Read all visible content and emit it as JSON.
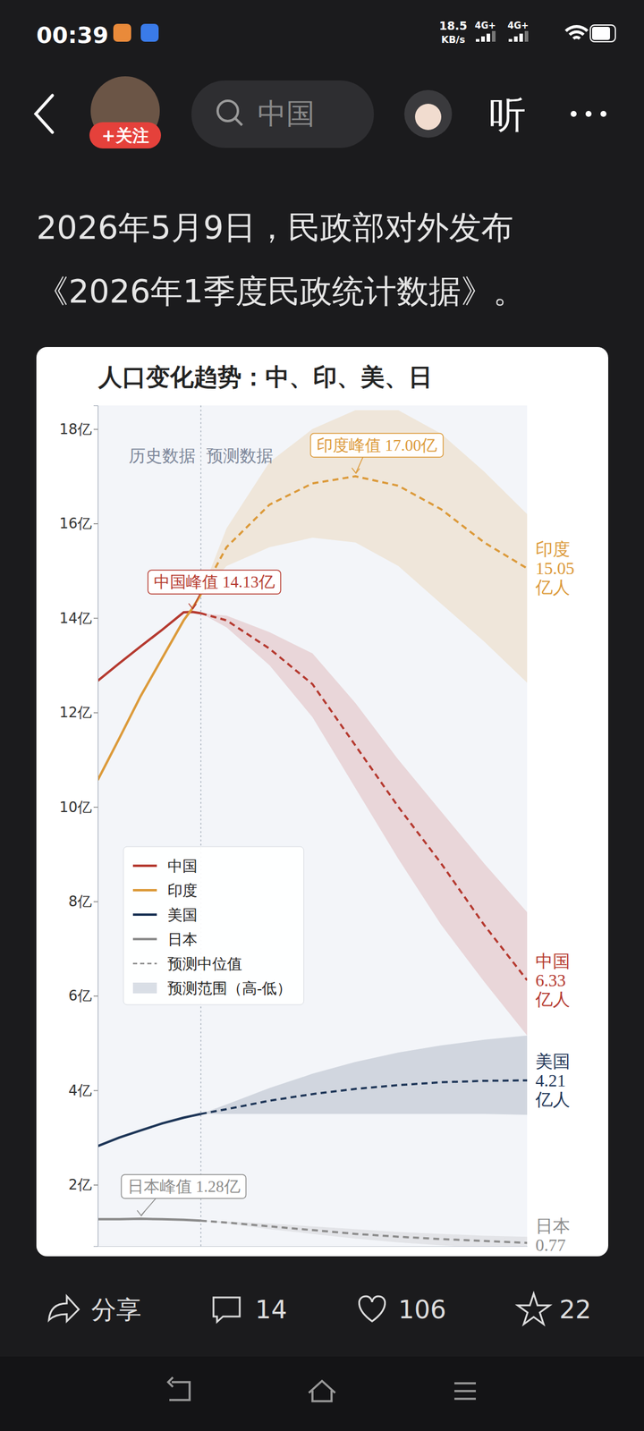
{
  "screen": {
    "time": "00:39",
    "net_speed": [
      "18.5",
      "KB/s"
    ],
    "signal": [
      "4G+",
      "4G+"
    ],
    "follow": "+关注",
    "search": "中国",
    "listen": "听",
    "headline": [
      "2026年5月9日，民政部对外发布",
      "《2026年1季度民政统计数据》。"
    ],
    "share": "分享",
    "comments": 14,
    "likes": 106,
    "favorites": 22
  },
  "chart_data": {
    "type": "line",
    "title": "人口变化趋势：中、印、美、日",
    "x": [
      2000,
      2005,
      2010,
      2015,
      2020,
      2022,
      2024,
      2030,
      2040,
      2050,
      2060,
      2070,
      2080,
      2090,
      2100
    ],
    "xlim": [
      2000,
      2100
    ],
    "ylim": [
      0.7,
      18.5
    ],
    "yticks": [
      {
        "value": 2,
        "label": "2亿"
      },
      {
        "value": 4,
        "label": "4亿"
      },
      {
        "value": 6,
        "label": "6亿"
      },
      {
        "value": 8,
        "label": "8亿"
      },
      {
        "value": 10,
        "label": "10亿"
      },
      {
        "value": 12,
        "label": "12亿"
      },
      {
        "value": 14,
        "label": "14亿"
      },
      {
        "value": 16,
        "label": "16亿"
      },
      {
        "value": 18,
        "label": "18亿"
      }
    ],
    "tick_labels": "y",
    "grid": false,
    "legend": "lower left",
    "divider_x": 2024,
    "history_label": "历史数据",
    "forecast_label": "预测数据",
    "median_label": "预测中位值",
    "range_label": "预测范围（高-低）",
    "series": [
      {
        "name": "中国",
        "color": "#b5392f",
        "values": [
          12.67,
          13.04,
          13.4,
          13.75,
          14.12,
          14.13,
          14.1,
          null,
          null,
          null,
          null,
          null,
          null,
          null,
          null
        ],
        "forecast": [
          null,
          null,
          null,
          null,
          null,
          null,
          14.1,
          13.95,
          13.35,
          12.6,
          11.3,
          10.0,
          8.8,
          7.5,
          6.33
        ],
        "forecast_high": [
          null,
          null,
          null,
          null,
          null,
          null,
          14.1,
          14.05,
          13.7,
          13.25,
          12.2,
          11.0,
          9.9,
          8.8,
          7.77
        ],
        "forecast_low": [
          null,
          null,
          null,
          null,
          null,
          null,
          14.1,
          13.8,
          13.0,
          11.9,
          10.4,
          8.9,
          7.5,
          6.3,
          5.16
        ],
        "peak_label": "中国峰值 14.13亿",
        "end_label": [
          "中国",
          "6.33",
          "亿人"
        ]
      },
      {
        "name": "印度",
        "color": "#dc9a3a",
        "values": [
          10.57,
          11.45,
          12.35,
          13.15,
          13.95,
          14.2,
          14.5,
          null,
          null,
          null,
          null,
          null,
          null,
          null,
          null
        ],
        "forecast": [
          null,
          null,
          null,
          null,
          null,
          null,
          14.5,
          15.5,
          16.4,
          16.85,
          17.0,
          16.8,
          16.3,
          15.6,
          15.05
        ],
        "forecast_high": [
          null,
          null,
          null,
          null,
          null,
          null,
          14.5,
          15.9,
          17.3,
          18.0,
          18.4,
          18.4,
          17.9,
          17.1,
          16.2
        ],
        "forecast_low": [
          null,
          null,
          null,
          null,
          null,
          null,
          14.5,
          15.1,
          15.5,
          15.7,
          15.6,
          15.1,
          14.3,
          13.5,
          12.63
        ],
        "peak_label": "印度峰值 17.00亿",
        "end_label": [
          "印度",
          "15.05",
          "亿人"
        ]
      },
      {
        "name": "美国",
        "color": "#1d3557",
        "values": [
          2.82,
          3.0,
          3.15,
          3.3,
          3.42,
          3.46,
          3.5,
          null,
          null,
          null,
          null,
          null,
          null,
          null,
          null
        ],
        "forecast": [
          null,
          null,
          null,
          null,
          null,
          null,
          3.5,
          3.6,
          3.78,
          3.92,
          4.03,
          4.11,
          4.17,
          4.2,
          4.21
        ],
        "forecast_high": [
          null,
          null,
          null,
          null,
          null,
          null,
          3.5,
          3.7,
          4.05,
          4.35,
          4.6,
          4.8,
          4.95,
          5.07,
          5.16
        ],
        "forecast_low": [
          null,
          null,
          null,
          null,
          null,
          null,
          3.5,
          3.5,
          3.5,
          3.5,
          3.5,
          3.5,
          3.5,
          3.5,
          3.48
        ],
        "end_label": [
          "美国",
          "4.21",
          "亿人"
        ]
      },
      {
        "name": "日本",
        "color": "#8c8c8c",
        "values": [
          1.27,
          1.27,
          1.28,
          1.27,
          1.26,
          1.25,
          1.24,
          null,
          null,
          null,
          null,
          null,
          null,
          null,
          null
        ],
        "forecast": [
          null,
          null,
          null,
          null,
          null,
          null,
          1.24,
          1.2,
          1.12,
          1.04,
          0.96,
          0.9,
          0.85,
          0.81,
          0.77
        ],
        "forecast_high": [
          null,
          null,
          null,
          null,
          null,
          null,
          1.24,
          1.22,
          1.18,
          1.12,
          1.06,
          1.0,
          0.96,
          0.92,
          0.9
        ],
        "forecast_low": [
          null,
          null,
          null,
          null,
          null,
          null,
          1.24,
          1.18,
          1.06,
          0.96,
          0.86,
          0.78,
          0.72,
          0.66,
          0.62
        ],
        "peak_label": "日本峰值 1.28亿",
        "end_label": [
          "日本",
          "0.77"
        ]
      }
    ]
  }
}
